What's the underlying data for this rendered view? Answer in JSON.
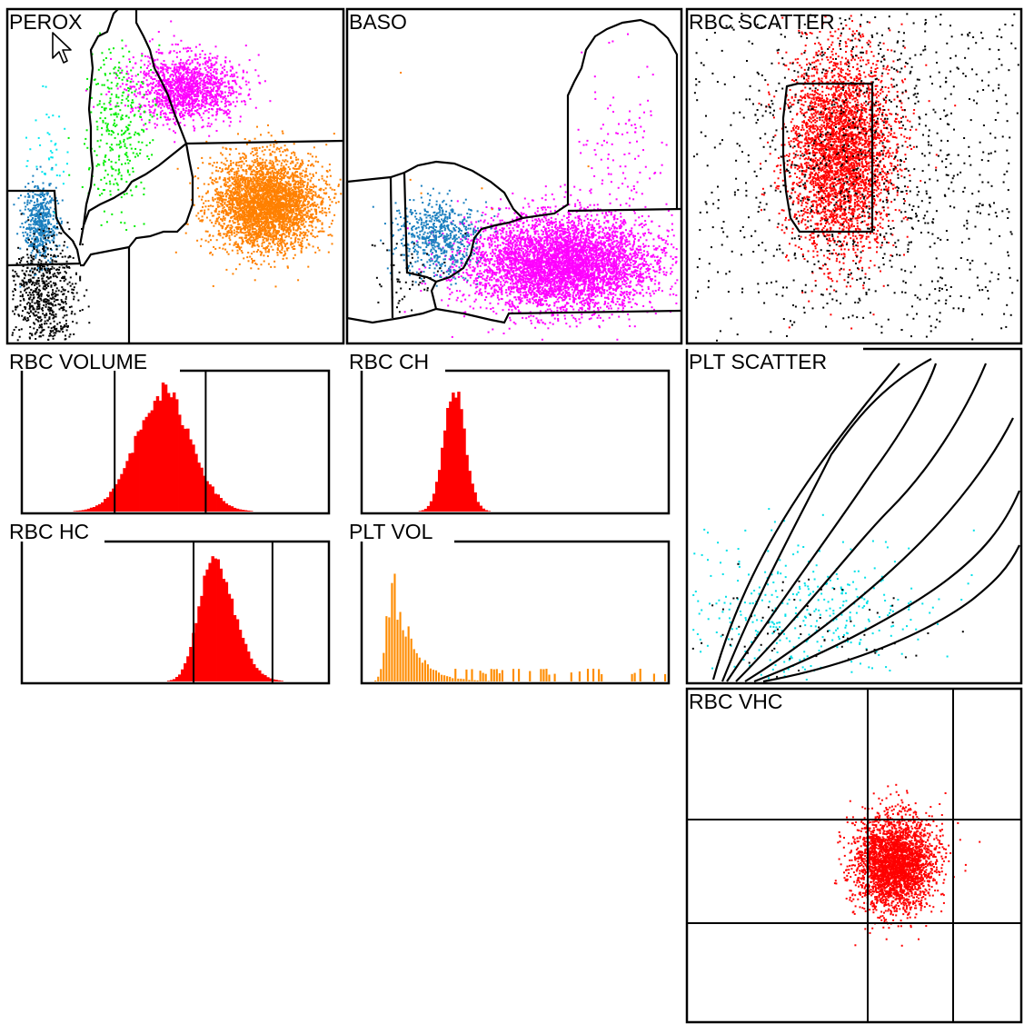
{
  "colors": {
    "neutrophil": "#ff8000",
    "eosinophil_region": "#ff00ff",
    "monocyte": "#00ee00",
    "lymphocyte": "#1a7fbf",
    "luc": "#00e8f0",
    "baso": "#ff00ff",
    "rbc": "#ff0000",
    "plt": "#ff8c00",
    "debris": "#000000",
    "plt_cyan": "#00e0e8"
  },
  "chart_data": [
    {
      "type": "scatter",
      "title": "PEROX",
      "series": [
        {
          "color_key": "eosinophil_region",
          "center": [
            0.53,
            0.23
          ],
          "spread": [
            0.08,
            0.05
          ],
          "count": 1400
        },
        {
          "color_key": "neutrophil",
          "center": [
            0.77,
            0.58
          ],
          "spread": [
            0.08,
            0.07
          ],
          "count": 3500
        },
        {
          "color_key": "monocyte",
          "center": [
            0.33,
            0.35
          ],
          "spread": [
            0.05,
            0.12
          ],
          "count": 330
        },
        {
          "color_key": "lymphocyte",
          "center": [
            0.09,
            0.64
          ],
          "spread": [
            0.025,
            0.06
          ],
          "count": 500
        },
        {
          "color_key": "luc",
          "center": [
            0.12,
            0.42
          ],
          "spread": [
            0.03,
            0.08
          ],
          "count": 40
        },
        {
          "color_key": "debris",
          "center": [
            0.1,
            0.86
          ],
          "spread": [
            0.05,
            0.09
          ],
          "count": 700
        }
      ]
    },
    {
      "type": "scatter",
      "title": "BASO",
      "series": [
        {
          "color_key": "baso",
          "center": [
            0.64,
            0.76
          ],
          "spread": [
            0.14,
            0.07
          ],
          "count": 5000
        },
        {
          "color_key": "lymphocyte",
          "center": [
            0.27,
            0.68
          ],
          "spread": [
            0.06,
            0.06
          ],
          "count": 650
        },
        {
          "color_key": "baso",
          "center": [
            0.82,
            0.45
          ],
          "spread": [
            0.07,
            0.15
          ],
          "count": 120
        },
        {
          "color_key": "neutrophil",
          "center": [
            0.4,
            0.5
          ],
          "spread": [
            0.15,
            0.15
          ],
          "count": 6
        },
        {
          "color_key": "debris",
          "center": [
            0.18,
            0.8
          ],
          "spread": [
            0.06,
            0.06
          ],
          "count": 60
        }
      ]
    },
    {
      "type": "scatter",
      "title": "RBC SCATTER",
      "series": [
        {
          "color_key": "rbc",
          "center": [
            0.46,
            0.42
          ],
          "spread": [
            0.08,
            0.15
          ],
          "count": 3500
        },
        {
          "color_key": "debris",
          "center": [
            0.55,
            0.45
          ],
          "spread": [
            0.3,
            0.35
          ],
          "count": 1400
        }
      ]
    },
    {
      "type": "bar",
      "title": "RBC VOLUME",
      "color_key": "rbc",
      "peak": 0.46,
      "width": 0.09,
      "markers": [
        0.3,
        0.6
      ]
    },
    {
      "type": "bar",
      "title": "RBC CH",
      "color_key": "rbc",
      "peak": 0.3,
      "width": 0.035,
      "markers": []
    },
    {
      "type": "bar",
      "title": "RBC HC",
      "color_key": "rbc",
      "peak": 0.62,
      "width": 0.045,
      "markers": [
        0.56,
        0.82
      ]
    },
    {
      "type": "bar",
      "title": "PLT VOL",
      "color_key": "plt",
      "peak": 0.1,
      "width": 0.06,
      "markers": []
    },
    {
      "type": "scatter",
      "title": "PLT SCATTER",
      "series": [
        {
          "color_key": "plt_cyan",
          "center": [
            0.35,
            0.8
          ],
          "spread": [
            0.18,
            0.12
          ],
          "count": 380
        },
        {
          "color_key": "debris",
          "center": [
            0.3,
            0.85
          ],
          "spread": [
            0.2,
            0.1
          ],
          "count": 80
        }
      ]
    },
    {
      "type": "scatter",
      "title": "RBC VHC",
      "series": [
        {
          "color_key": "rbc",
          "center": [
            0.62,
            0.52
          ],
          "spread": [
            0.06,
            0.07
          ],
          "count": 3000
        }
      ]
    }
  ]
}
